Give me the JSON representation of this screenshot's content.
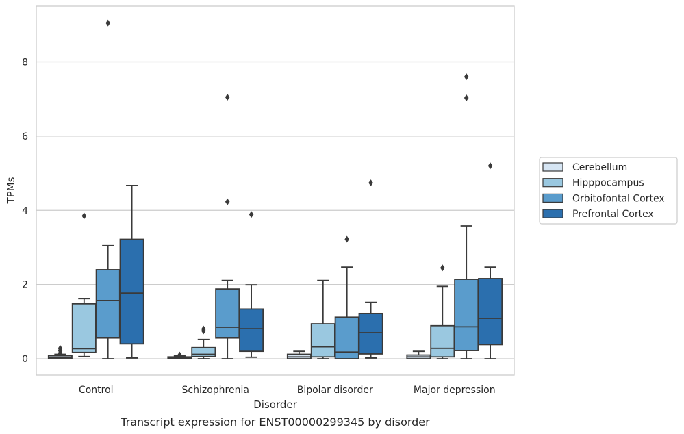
{
  "chart_data": {
    "type": "box",
    "xlabel": "Disorder",
    "ylabel": "TPMs",
    "caption": "Transcript expression for ENST00000299345 by disorder",
    "ylim": [
      -0.45,
      9.6
    ],
    "yticks": [
      "0",
      "2",
      "4",
      "6",
      "8"
    ],
    "grid": true,
    "legend_position": "right",
    "categories": [
      "Control",
      "Schizophrenia",
      "Bipolar disorder",
      "Major depression"
    ],
    "series": [
      {
        "name": "Cerebellum",
        "color": "#d6e5f3",
        "boxes": [
          {
            "whisker_low": 0.0,
            "q1": 0.0,
            "median": 0.03,
            "q3": 0.08,
            "whisker_high": 0.12,
            "outliers": [
              0.15,
              0.22,
              0.28
            ]
          },
          {
            "whisker_low": 0.0,
            "q1": 0.0,
            "median": 0.02,
            "q3": 0.05,
            "whisker_high": 0.08,
            "outliers": [
              0.1
            ]
          },
          {
            "whisker_low": 0.0,
            "q1": 0.0,
            "median": 0.05,
            "q3": 0.12,
            "whisker_high": 0.2,
            "outliers": []
          },
          {
            "whisker_low": 0.0,
            "q1": 0.0,
            "median": 0.05,
            "q3": 0.1,
            "whisker_high": 0.2,
            "outliers": []
          }
        ]
      },
      {
        "name": "Hipppocampus",
        "color": "#9ac8e0",
        "boxes": [
          {
            "whisker_low": 0.06,
            "q1": 0.17,
            "median": 0.27,
            "q3": 1.48,
            "whisker_high": 1.62,
            "outliers": [
              3.85
            ]
          },
          {
            "whisker_low": 0.0,
            "q1": 0.06,
            "median": 0.12,
            "q3": 0.3,
            "whisker_high": 0.52,
            "outliers": [
              0.75,
              0.8
            ]
          },
          {
            "whisker_low": 0.0,
            "q1": 0.05,
            "median": 0.32,
            "q3": 0.94,
            "whisker_high": 2.11,
            "outliers": []
          },
          {
            "whisker_low": 0.0,
            "q1": 0.05,
            "median": 0.28,
            "q3": 0.89,
            "whisker_high": 1.95,
            "outliers": [
              2.45
            ]
          }
        ]
      },
      {
        "name": "Orbitofontal Cortex",
        "color": "#5a9ccc",
        "boxes": [
          {
            "whisker_low": 0.0,
            "q1": 0.56,
            "median": 1.57,
            "q3": 2.4,
            "whisker_high": 3.05,
            "outliers": [
              9.05
            ]
          },
          {
            "whisker_low": 0.0,
            "q1": 0.56,
            "median": 0.85,
            "q3": 1.88,
            "whisker_high": 2.11,
            "outliers": [
              4.23,
              7.05
            ]
          },
          {
            "whisker_low": 0.0,
            "q1": 0.0,
            "median": 0.18,
            "q3": 1.12,
            "whisker_high": 2.47,
            "outliers": [
              3.22
            ]
          },
          {
            "whisker_low": 0.0,
            "q1": 0.22,
            "median": 0.86,
            "q3": 2.14,
            "whisker_high": 3.58,
            "outliers": [
              7.03,
              7.6
            ]
          }
        ]
      },
      {
        "name": "Prefrontal Cortex",
        "color": "#2b6fae",
        "boxes": [
          {
            "whisker_low": 0.02,
            "q1": 0.4,
            "median": 1.77,
            "q3": 3.22,
            "whisker_high": 4.67,
            "outliers": []
          },
          {
            "whisker_low": 0.04,
            "q1": 0.2,
            "median": 0.81,
            "q3": 1.34,
            "whisker_high": 1.99,
            "outliers": [
              3.89
            ]
          },
          {
            "whisker_low": 0.02,
            "q1": 0.13,
            "median": 0.7,
            "q3": 1.22,
            "whisker_high": 1.52,
            "outliers": [
              4.74
            ]
          },
          {
            "whisker_low": 0.0,
            "q1": 0.38,
            "median": 1.09,
            "q3": 2.16,
            "whisker_high": 2.47,
            "outliers": [
              5.2
            ]
          }
        ]
      }
    ]
  }
}
